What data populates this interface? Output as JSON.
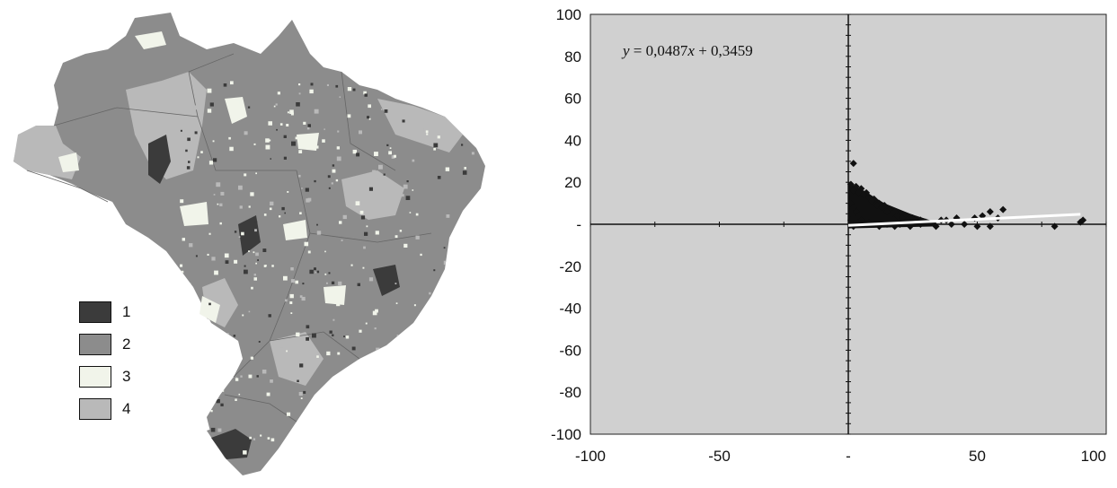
{
  "map": {
    "colors": [
      "#3b3b3b",
      "#8c8c8c",
      "#f1f4ea",
      "#b9b9b9"
    ],
    "legend": [
      {
        "label": "1",
        "color": "#3b3b3b"
      },
      {
        "label": "2",
        "color": "#8c8c8c"
      },
      {
        "label": "3",
        "color": "#f1f4ea"
      },
      {
        "label": "4",
        "color": "#b9b9b9"
      }
    ]
  },
  "chart_data": {
    "type": "scatter",
    "title": "",
    "xlabel": "",
    "ylabel": "",
    "xlim": [
      -100,
      100
    ],
    "ylim": [
      -100,
      100
    ],
    "grid": false,
    "background": "#d0d0d0",
    "point_color": "#111111",
    "trendline_color": "#ffffff",
    "x_ticks": [
      {
        "value": -100,
        "label": "-100"
      },
      {
        "value": -50,
        "label": "-50"
      },
      {
        "value": 0,
        "label": "-"
      },
      {
        "value": 50,
        "label": "50"
      },
      {
        "value": 100,
        "label": "100"
      }
    ],
    "y_ticks": [
      {
        "value": 100,
        "label": "100"
      },
      {
        "value": 80,
        "label": "80"
      },
      {
        "value": 60,
        "label": "60"
      },
      {
        "value": 40,
        "label": "40"
      },
      {
        "value": 20,
        "label": "20"
      },
      {
        "value": 0,
        "label": "-"
      },
      {
        "value": -20,
        "label": "-20"
      },
      {
        "value": -40,
        "label": "-40"
      },
      {
        "value": -60,
        "label": "-60"
      },
      {
        "value": -80,
        "label": "-80"
      },
      {
        "value": -100,
        "label": "-100"
      }
    ],
    "annotation": {
      "prefix": "y",
      "text": " = 0,0487",
      "var": "x",
      "suffix": " + 0,3459"
    },
    "trendline": {
      "slope": 0.0487,
      "intercept": 0.3459,
      "x_range": [
        0,
        90
      ]
    },
    "points": [
      [
        2,
        29
      ],
      [
        1,
        19
      ],
      [
        3,
        18
      ],
      [
        5,
        17
      ],
      [
        2,
        16
      ],
      [
        4,
        15
      ],
      [
        7,
        15
      ],
      [
        6,
        14
      ],
      [
        8,
        13
      ],
      [
        10,
        12
      ],
      [
        9,
        11
      ],
      [
        12,
        10
      ],
      [
        11,
        9
      ],
      [
        14,
        9
      ],
      [
        13,
        8
      ],
      [
        16,
        7
      ],
      [
        18,
        6
      ],
      [
        15,
        6
      ],
      [
        20,
        5
      ],
      [
        22,
        4
      ],
      [
        25,
        3
      ],
      [
        28,
        2
      ],
      [
        24,
        2
      ],
      [
        30,
        1
      ],
      [
        19,
        4
      ],
      [
        17,
        5
      ],
      [
        21,
        3
      ],
      [
        23,
        2
      ],
      [
        27,
        1
      ],
      [
        26,
        2
      ],
      [
        36,
        2
      ],
      [
        38,
        2
      ],
      [
        42,
        3
      ],
      [
        49,
        3
      ],
      [
        52,
        4
      ],
      [
        55,
        6
      ],
      [
        60,
        7
      ],
      [
        58,
        3
      ],
      [
        34,
        -1
      ],
      [
        40,
        0
      ],
      [
        45,
        0
      ],
      [
        50,
        -1
      ],
      [
        55,
        -1
      ],
      [
        80,
        -1
      ],
      [
        90,
        1
      ],
      [
        91,
        2
      ],
      [
        1,
        10
      ],
      [
        2,
        8
      ],
      [
        3,
        6
      ],
      [
        4,
        4
      ],
      [
        5,
        2
      ],
      [
        1,
        2
      ],
      [
        2,
        -1
      ],
      [
        6,
        0
      ],
      [
        8,
        1
      ],
      [
        10,
        0
      ],
      [
        12,
        -1
      ],
      [
        15,
        0
      ],
      [
        18,
        -1
      ],
      [
        20,
        0
      ],
      [
        24,
        -1
      ],
      [
        28,
        0
      ]
    ]
  }
}
